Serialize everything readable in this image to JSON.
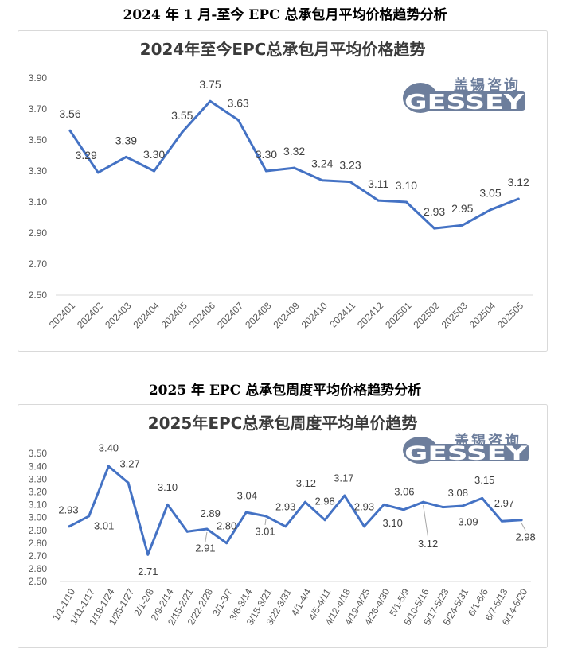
{
  "sections": [
    {
      "caption": "2024 年 1 月-至今 EPC 总承包月平均价格趋势分析"
    },
    {
      "caption": "2025 年 EPC 总承包周度平均价格趋势分析"
    }
  ],
  "logo": {
    "cn": "盖锡咨询",
    "en": "GESSEY",
    "color": "#6d7e9c"
  },
  "chart_data": [
    {
      "type": "line",
      "title": "2024年至今EPC总承包月平均价格趋势",
      "categories": [
        "202401",
        "202402",
        "202403",
        "202404",
        "202405",
        "202406",
        "202407",
        "202408",
        "202409",
        "202410",
        "202411",
        "202412",
        "202501",
        "202502",
        "202503",
        "202504",
        "202505"
      ],
      "series": [
        {
          "values": [
            3.56,
            3.29,
            3.39,
            3.3,
            3.55,
            3.75,
            3.63,
            3.3,
            3.32,
            3.24,
            3.23,
            3.11,
            3.1,
            2.93,
            2.95,
            3.05,
            3.12
          ],
          "color": "#4472C4"
        }
      ],
      "ylim": [
        2.5,
        3.9
      ],
      "yticks": [
        2.5,
        2.7,
        2.9,
        3.1,
        3.3,
        3.5,
        3.7,
        3.9
      ],
      "grid": false,
      "legend": "none",
      "data_labels": true
    },
    {
      "type": "line",
      "title": "2025年EPC总承包周度平均单价趋势",
      "categories": [
        "1/1-1/10",
        "1/11-1/17",
        "1/18-1/24",
        "1/25-1/27",
        "2/1-2/8",
        "2/9-2/14",
        "2/15-2/21",
        "2/22-2/28",
        "3/1-3/7",
        "3/8-3/14",
        "3/15-3/21",
        "3/22-3/31",
        "4/1-4/4",
        "4/5-4/11",
        "4/12-4/18",
        "4/19-4/25",
        "4/26-4/30",
        "5/1-5/9",
        "5/10-5/16",
        "5/17-5/23",
        "5/24-5/31",
        "6/1-6/6",
        "6/7-6/13",
        "6/14-6/20"
      ],
      "series": [
        {
          "values": [
            2.93,
            3.01,
            3.4,
            3.27,
            2.71,
            3.1,
            2.89,
            2.91,
            2.8,
            3.04,
            3.01,
            2.93,
            3.12,
            2.98,
            3.17,
            2.93,
            3.1,
            3.06,
            3.12,
            3.08,
            3.09,
            3.15,
            2.97,
            2.98
          ],
          "color": "#4472C4"
        }
      ],
      "ylim": [
        2.5,
        3.5
      ],
      "yticks": [
        2.5,
        2.6,
        2.7,
        2.8,
        2.9,
        3.0,
        3.1,
        3.2,
        3.3,
        3.4,
        3.5
      ],
      "grid": false,
      "legend": "none",
      "data_labels": true
    }
  ]
}
